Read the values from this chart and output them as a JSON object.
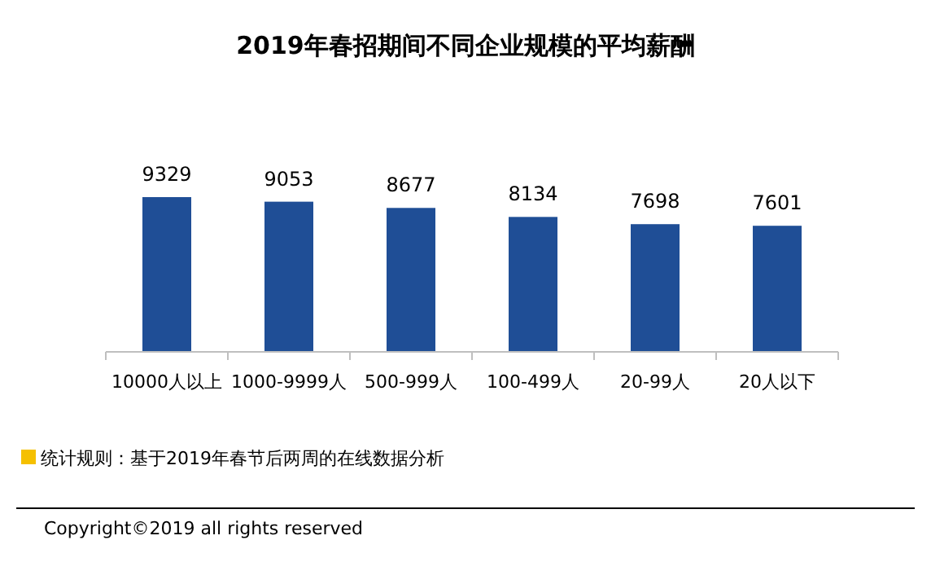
{
  "chart_data": {
    "type": "bar",
    "title": "2019年春招期间不同企业规模的平均薪酬",
    "categories": [
      "10000人以上",
      "1000-9999人",
      "500-999人",
      "100-499人",
      "20-99人",
      "20人以下"
    ],
    "values": [
      9329,
      9053,
      8677,
      8134,
      7698,
      7601
    ],
    "color": "#1f4e96",
    "data_labels": true,
    "annotations": [
      "统计规则：基于2019年春节后两周的在线数据分析",
      "Copyright©2019 all rights reserved"
    ]
  }
}
